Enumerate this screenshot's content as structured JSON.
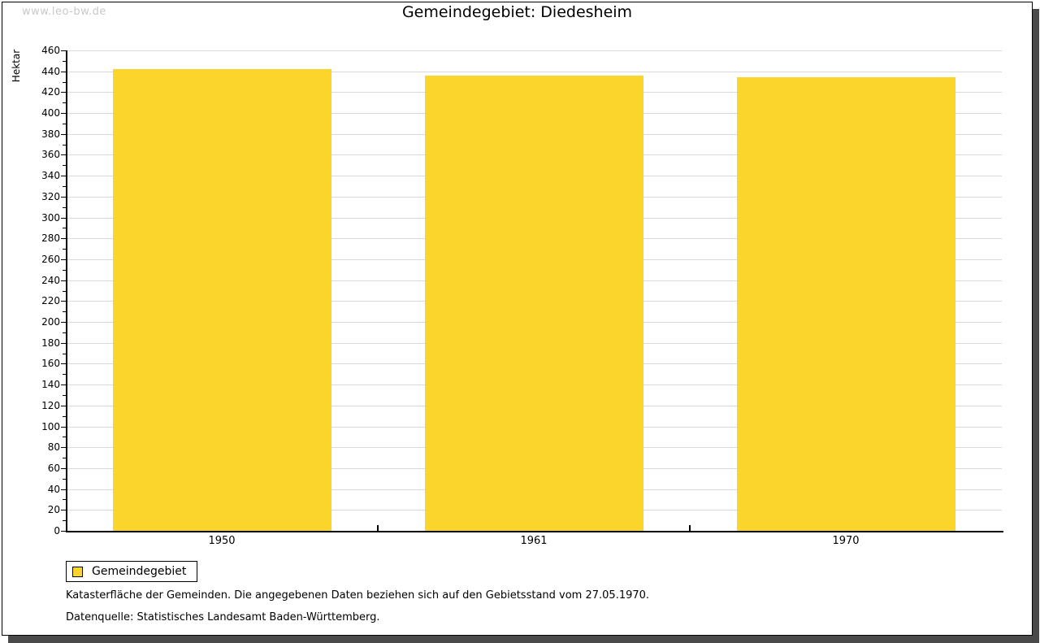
{
  "watermark": "www.leo-bw.de",
  "chart_data": {
    "type": "bar",
    "title": "Gemeindegebiet: Diedesheim",
    "ylabel": "Hektar",
    "xlabel": "",
    "categories": [
      "1950",
      "1961",
      "1970"
    ],
    "series": [
      {
        "name": "Gemeindegebiet",
        "values": [
          442,
          436,
          434
        ]
      }
    ],
    "ylim": [
      0,
      460
    ],
    "ytick_step": 20,
    "minor_tick_step": 10,
    "grid": "horizontal",
    "legend_position": "bottom-left",
    "bar_color": "#fcd52c"
  },
  "legend": {
    "items": [
      {
        "label": "Gemeindegebiet",
        "color": "#fcd52c"
      }
    ]
  },
  "notes": [
    "Katasterfläche der Gemeinden. Die angegebenen Daten beziehen sich auf den Gebietsstand vom 27.05.1970.",
    "Datenquelle: Statistisches Landesamt Baden-Württemberg."
  ]
}
